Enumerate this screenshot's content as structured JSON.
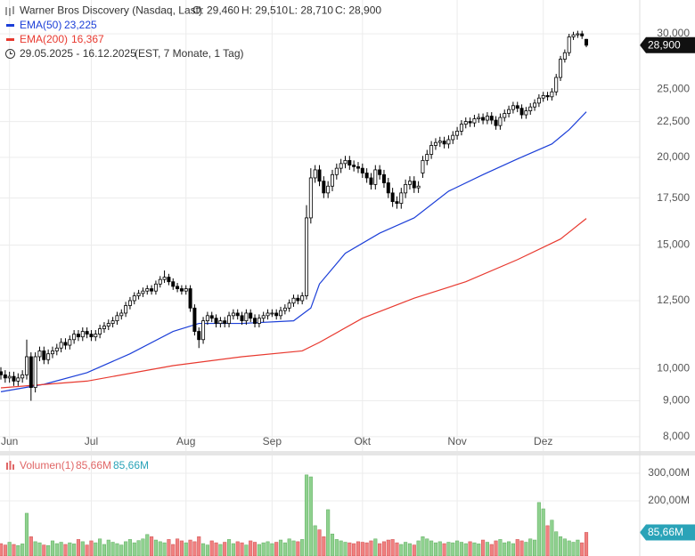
{
  "chart_data": [
    {
      "type": "candlestick",
      "title": "Warner Bros Discovery (Nasdaq, Last)",
      "ohlc_labels": [
        "O: 29,460",
        "H: 29,510",
        "L: 28,710",
        "C: 28,900"
      ],
      "subtitle": "29.05.2025 - 16.12.2025",
      "note": "(EST, 7 Monate, 1 Tag)",
      "log_scale": true,
      "grid": true,
      "up_color": "#ffffff",
      "down_color": "#000000",
      "xlim": [
        0,
        148
      ],
      "xticks": [
        {
          "value": 2,
          "label": "Jun"
        },
        {
          "value": 21,
          "label": "Jul"
        },
        {
          "value": 43,
          "label": "Aug"
        },
        {
          "value": 63,
          "label": "Sep"
        },
        {
          "value": 84,
          "label": "Okt"
        },
        {
          "value": 106,
          "label": "Nov"
        },
        {
          "value": 126,
          "label": "Dez"
        }
      ],
      "ylim": [
        7.61,
        33.52
      ],
      "yticks": [
        {
          "value": 8,
          "label": "8,000"
        },
        {
          "value": 9,
          "label": "9,000"
        },
        {
          "value": 10,
          "label": "10,000"
        },
        {
          "value": 12.5,
          "label": "12,500"
        },
        {
          "value": 15,
          "label": "15,000"
        },
        {
          "value": 17.5,
          "label": "17,500"
        },
        {
          "value": 20,
          "label": "20,000"
        },
        {
          "value": 22.5,
          "label": "22,500"
        },
        {
          "value": 25,
          "label": "25,000"
        },
        {
          "value": 30,
          "label": "30,000"
        }
      ],
      "open": [
        9.9,
        9.8,
        9.7,
        9.75,
        9.6,
        9.7,
        9.8,
        10.4,
        9.4,
        10.4,
        10.6,
        10.3,
        10.5,
        10.6,
        10.7,
        10.9,
        10.8,
        11.0,
        11.2,
        11.1,
        11.3,
        11.2,
        11.1,
        11.2,
        11.4,
        11.5,
        11.6,
        11.7,
        11.9,
        12.0,
        12.3,
        12.5,
        12.7,
        12.8,
        12.9,
        13.0,
        12.9,
        13.2,
        13.4,
        13.5,
        13.3,
        13.1,
        13.0,
        12.9,
        13.0,
        12.2,
        11.3,
        11.0,
        11.7,
        11.9,
        11.8,
        11.6,
        11.7,
        11.6,
        11.9,
        12.0,
        11.9,
        11.7,
        12.0,
        11.8,
        11.6,
        11.8,
        11.9,
        12.0,
        12.0,
        11.9,
        12.1,
        12.2,
        12.4,
        12.6,
        12.5,
        12.7,
        16.4,
        18.7,
        19.2,
        18.5,
        17.8,
        18.2,
        18.9,
        19.3,
        19.6,
        19.8,
        19.5,
        19.4,
        19.3,
        19.0,
        18.7,
        18.3,
        19.2,
        18.9,
        18.4,
        17.8,
        17.3,
        17.2,
        17.8,
        18.3,
        18.5,
        18.1,
        19.0,
        19.8,
        20.2,
        20.8,
        21.0,
        21.1,
        20.9,
        21.2,
        21.5,
        21.8,
        22.3,
        22.5,
        22.4,
        22.7,
        22.8,
        22.6,
        22.9,
        22.6,
        22.2,
        22.8,
        23.1,
        23.4,
        23.7,
        23.5,
        23.0,
        23.3,
        23.6,
        23.9,
        24.3,
        24.5,
        24.4,
        24.8,
        26.0,
        27.6,
        28.2,
        29.7,
        29.9,
        30.0,
        29.46
      ],
      "high": [
        10.05,
        9.95,
        9.9,
        9.9,
        9.85,
        9.95,
        11.0,
        10.55,
        10.55,
        10.75,
        10.75,
        10.65,
        10.75,
        10.85,
        11.05,
        11.05,
        11.15,
        11.35,
        11.35,
        11.45,
        11.45,
        11.35,
        11.35,
        11.55,
        11.65,
        11.75,
        11.85,
        12.05,
        12.15,
        12.45,
        12.65,
        12.85,
        12.95,
        13.05,
        13.15,
        13.15,
        13.35,
        13.55,
        13.8,
        13.65,
        13.45,
        13.25,
        13.15,
        13.15,
        13.15,
        12.35,
        11.45,
        11.85,
        12.05,
        12.05,
        11.95,
        11.85,
        11.85,
        12.05,
        12.15,
        12.15,
        12.05,
        12.15,
        12.15,
        11.95,
        11.95,
        12.05,
        12.15,
        12.15,
        12.15,
        12.25,
        12.35,
        12.55,
        12.75,
        12.75,
        12.85,
        17.1,
        19.3,
        19.5,
        19.5,
        18.8,
        18.5,
        19.2,
        19.6,
        19.9,
        20.1,
        20.1,
        19.8,
        19.7,
        19.6,
        19.3,
        19.0,
        19.5,
        19.5,
        19.2,
        18.7,
        18.1,
        17.6,
        18.1,
        18.6,
        18.8,
        18.8,
        18.5,
        20.1,
        20.5,
        21.1,
        21.3,
        21.4,
        21.4,
        21.5,
        21.8,
        22.1,
        22.6,
        22.8,
        22.8,
        23.0,
        23.1,
        23.1,
        23.2,
        23.2,
        22.9,
        23.1,
        23.4,
        23.7,
        24.0,
        24.0,
        23.8,
        23.6,
        23.9,
        24.2,
        24.6,
        24.8,
        24.8,
        25.1,
        26.3,
        27.9,
        28.5,
        30.0,
        30.2,
        30.3,
        30.3,
        29.51
      ],
      "low": [
        9.65,
        9.55,
        9.55,
        9.45,
        9.45,
        9.55,
        9.65,
        9.0,
        9.25,
        10.25,
        10.15,
        10.15,
        10.35,
        10.45,
        10.55,
        10.65,
        10.65,
        10.85,
        10.95,
        10.95,
        11.05,
        10.95,
        10.95,
        11.05,
        11.25,
        11.35,
        11.45,
        11.55,
        11.75,
        11.85,
        12.15,
        12.35,
        12.55,
        12.65,
        12.75,
        12.75,
        12.75,
        13.05,
        13.25,
        13.15,
        12.95,
        12.85,
        12.75,
        12.75,
        12.05,
        11.15,
        10.7,
        10.85,
        11.55,
        11.65,
        11.45,
        11.45,
        11.45,
        11.45,
        11.75,
        11.75,
        11.55,
        11.55,
        11.65,
        11.45,
        11.45,
        11.65,
        11.75,
        11.85,
        11.75,
        11.75,
        11.95,
        12.05,
        12.25,
        12.35,
        12.35,
        12.55,
        16.1,
        18.4,
        18.2,
        17.5,
        17.5,
        17.9,
        18.6,
        19.0,
        19.3,
        19.2,
        19.1,
        19.0,
        18.7,
        18.4,
        18.0,
        18.0,
        18.6,
        18.1,
        17.5,
        17.0,
        16.9,
        16.9,
        17.5,
        18.0,
        17.8,
        17.8,
        18.7,
        19.5,
        19.9,
        20.5,
        20.7,
        20.6,
        20.6,
        20.9,
        21.2,
        21.5,
        22.0,
        22.1,
        22.1,
        22.4,
        22.3,
        22.3,
        22.3,
        21.9,
        21.9,
        22.5,
        22.8,
        23.1,
        23.2,
        22.7,
        22.7,
        23.0,
        23.3,
        23.6,
        24.0,
        24.1,
        24.1,
        24.5,
        25.7,
        27.3,
        27.9,
        29.4,
        29.6,
        29.5,
        28.71
      ],
      "close": [
        9.8,
        9.7,
        9.75,
        9.6,
        9.7,
        9.8,
        10.4,
        9.4,
        10.4,
        10.6,
        10.3,
        10.5,
        10.6,
        10.7,
        10.9,
        10.8,
        11.0,
        11.2,
        11.1,
        11.3,
        11.2,
        11.1,
        11.2,
        11.4,
        11.5,
        11.6,
        11.7,
        11.9,
        12.0,
        12.3,
        12.5,
        12.7,
        12.8,
        12.9,
        13.0,
        12.9,
        13.2,
        13.4,
        13.5,
        13.3,
        13.1,
        13.0,
        12.9,
        13.0,
        12.2,
        11.3,
        11.0,
        11.7,
        11.9,
        11.8,
        11.6,
        11.7,
        11.6,
        11.9,
        12.0,
        11.9,
        11.7,
        12.0,
        11.8,
        11.6,
        11.8,
        11.9,
        12.0,
        12.0,
        11.9,
        12.1,
        12.2,
        12.4,
        12.6,
        12.5,
        12.7,
        16.4,
        18.7,
        19.2,
        18.5,
        17.8,
        18.2,
        18.9,
        19.3,
        19.6,
        19.8,
        19.5,
        19.4,
        19.3,
        19.0,
        18.7,
        18.3,
        19.2,
        18.9,
        18.4,
        17.8,
        17.3,
        17.2,
        17.8,
        18.3,
        18.5,
        18.1,
        18.2,
        19.8,
        20.2,
        20.8,
        21.0,
        21.1,
        20.9,
        21.2,
        21.5,
        21.8,
        22.3,
        22.5,
        22.4,
        22.7,
        22.8,
        22.6,
        22.9,
        22.6,
        22.2,
        22.8,
        23.1,
        23.4,
        23.7,
        23.5,
        23.0,
        23.3,
        23.6,
        23.9,
        24.3,
        24.5,
        24.4,
        24.8,
        26.0,
        27.6,
        28.2,
        29.7,
        29.9,
        30.0,
        29.8,
        28.9
      ],
      "last_price": 28.9,
      "last_price_label": "28,900",
      "series": [
        {
          "name": "EMA(50)",
          "color": "#1c3fd8",
          "last_value_label": "23,225",
          "x": [
            0,
            10,
            20,
            30,
            40,
            46,
            56,
            68,
            72,
            74,
            80,
            88,
            96,
            104,
            112,
            120,
            128,
            132,
            136
          ],
          "values": [
            9.27,
            9.5,
            9.87,
            10.5,
            11.3,
            11.6,
            11.6,
            11.7,
            12.2,
            13.2,
            14.6,
            15.6,
            16.4,
            17.9,
            18.9,
            19.9,
            20.9,
            21.9,
            23.225
          ]
        },
        {
          "name": "EMA(200)",
          "color": "#e8392f",
          "last_value_label": "16,367",
          "x": [
            0,
            20,
            40,
            56,
            70,
            74,
            84,
            96,
            108,
            120,
            130,
            136
          ],
          "values": [
            9.39,
            9.6,
            10.1,
            10.4,
            10.6,
            10.9,
            11.8,
            12.6,
            13.3,
            14.3,
            15.3,
            16.367
          ]
        }
      ]
    },
    {
      "type": "bar",
      "name": "Volumen(1)",
      "last_value_label": "85,66M",
      "badge_color": "#2aa3b8",
      "up_color": "#8fd18f",
      "down_color": "#f08080",
      "xlim": [
        0,
        148
      ],
      "ylim": [
        0,
        364.5
      ],
      "yticks": [
        {
          "value": 200,
          "label": "200,00M"
        },
        {
          "value": 300,
          "label": "300,00M"
        }
      ],
      "values": [
        45,
        40,
        50,
        42,
        38,
        44,
        155,
        70,
        52,
        48,
        40,
        38,
        55,
        45,
        50,
        42,
        48,
        44,
        60,
        52,
        40,
        55,
        48,
        62,
        42,
        58,
        50,
        45,
        40,
        52,
        60,
        48,
        56,
        62,
        78,
        70,
        58,
        52,
        48,
        60,
        42,
        62,
        55,
        48,
        58,
        52,
        70,
        45,
        40,
        55,
        48,
        42,
        50,
        60,
        45,
        52,
        48,
        40,
        55,
        50,
        42,
        48,
        52,
        45,
        50,
        58,
        48,
        62,
        55,
        52,
        60,
        294,
        287,
        110,
        95,
        70,
        168,
        80,
        60,
        55,
        50,
        48,
        45,
        52,
        50,
        48,
        55,
        62,
        45,
        52,
        58,
        60,
        48,
        42,
        50,
        45,
        40,
        55,
        70,
        62,
        55,
        48,
        52,
        45,
        50,
        48,
        55,
        50,
        45,
        52,
        48,
        44,
        58,
        50,
        42,
        55,
        60,
        48,
        52,
        45,
        60,
        55,
        50,
        62,
        58,
        194,
        171,
        110,
        130,
        88,
        70,
        62,
        55,
        50,
        58,
        48,
        85.66
      ]
    }
  ]
}
